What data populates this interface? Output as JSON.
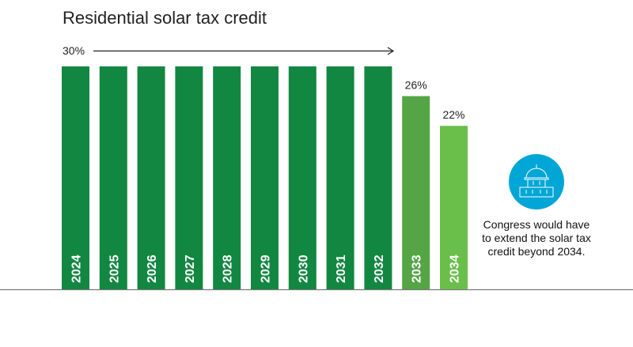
{
  "chart_data": {
    "type": "bar",
    "title": "Residential solar tax credit",
    "categories": [
      "2024",
      "2025",
      "2026",
      "2027",
      "2028",
      "2029",
      "2030",
      "2031",
      "2032",
      "2033",
      "2034"
    ],
    "values": [
      30,
      30,
      30,
      30,
      30,
      30,
      30,
      30,
      30,
      26,
      22
    ],
    "unit": "%",
    "ylim": [
      0,
      30
    ],
    "grid": false,
    "bar_colors": [
      "#128741",
      "#128741",
      "#128741",
      "#128741",
      "#128741",
      "#128741",
      "#128741",
      "#128741",
      "#128741",
      "#55a546",
      "#6abf4b"
    ],
    "annotations": {
      "range_label": "30%",
      "labels": {
        "2033": "26%",
        "2034": "22%"
      },
      "note": "Congress would have to extend the solar tax credit beyond 2034.",
      "note_icon": "capitol-building-icon",
      "icon_color": "#00a6d6"
    }
  }
}
